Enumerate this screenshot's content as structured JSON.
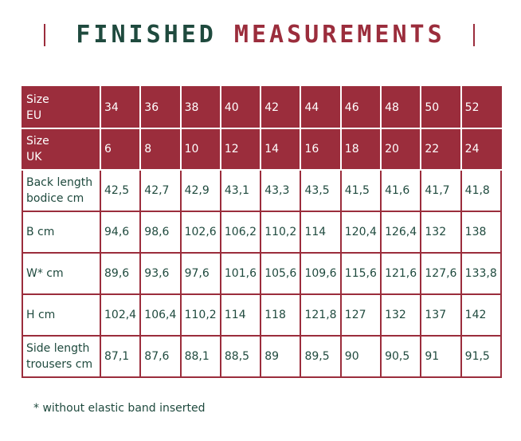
{
  "header": {
    "title_part1": "FINISHED",
    "title_part2": "MEASUREMENTS"
  },
  "table": {
    "rows": [
      [
        "Size\nEU",
        "34",
        "36",
        "38",
        "40",
        "42",
        "44",
        "46",
        "48",
        "50",
        "52"
      ],
      [
        "Size\nUK",
        "6",
        "8",
        "10",
        "12",
        "14",
        "16",
        "18",
        "20",
        "22",
        "24"
      ],
      [
        "Back length\nbodice cm",
        "42,5",
        "42,7",
        "42,9",
        "43,1",
        "43,3",
        "43,5",
        "41,5",
        "41,6",
        "41,7",
        "41,8"
      ],
      [
        "B cm",
        "94,6",
        "98,6",
        "102,6",
        "106,2",
        "110,2",
        "114",
        "120,4",
        "126,4",
        "132",
        "138"
      ],
      [
        "W* cm",
        "89,6",
        "93,6",
        "97,6",
        "101,6",
        "105,6",
        "109,6",
        "115,6",
        "121,6",
        "127,6",
        "133,8"
      ],
      [
        "H cm",
        "102,4",
        "106,4",
        "110,2",
        "114",
        "118",
        "121,8",
        "127",
        "132",
        "137",
        "142"
      ],
      [
        "Side length\ntrousers cm",
        "87,1",
        "87,6",
        "88,1",
        "88,5",
        "89",
        "89,5",
        "90",
        "90,5",
        "91",
        "91,5"
      ]
    ]
  },
  "footnote": "* without elastic band inserted"
}
